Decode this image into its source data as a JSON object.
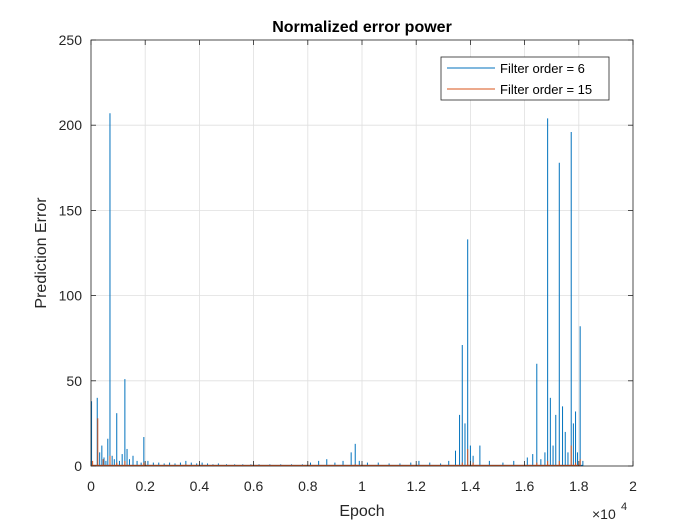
{
  "chart_data": {
    "type": "line",
    "title": "Normalized error power",
    "xlabel": "Epoch",
    "ylabel": "Prediction Error",
    "x_exponent_label": "×10",
    "x_exponent_power": "4",
    "x_ticks": [
      "0",
      "0.2",
      "0.4",
      "0.6",
      "0.8",
      "1",
      "1.2",
      "1.4",
      "1.6",
      "1.8",
      "2"
    ],
    "y_ticks": [
      "0",
      "50",
      "100",
      "150",
      "200",
      "250"
    ],
    "xlim": [
      0,
      20000
    ],
    "ylim": [
      0,
      250
    ],
    "grid": true,
    "legend_position": "top-right",
    "series": [
      {
        "name": "Filter order = 6",
        "color": "#0072BD",
        "spikes": [
          {
            "x": 20,
            "y": 38
          },
          {
            "x": 230,
            "y": 40
          },
          {
            "x": 320,
            "y": 8
          },
          {
            "x": 400,
            "y": 12
          },
          {
            "x": 480,
            "y": 5
          },
          {
            "x": 550,
            "y": 3
          },
          {
            "x": 620,
            "y": 16
          },
          {
            "x": 700,
            "y": 207
          },
          {
            "x": 780,
            "y": 6
          },
          {
            "x": 860,
            "y": 4
          },
          {
            "x": 950,
            "y": 31
          },
          {
            "x": 1050,
            "y": 3
          },
          {
            "x": 1150,
            "y": 7
          },
          {
            "x": 1250,
            "y": 51
          },
          {
            "x": 1330,
            "y": 10
          },
          {
            "x": 1420,
            "y": 4
          },
          {
            "x": 1550,
            "y": 6
          },
          {
            "x": 1700,
            "y": 3
          },
          {
            "x": 1850,
            "y": 2
          },
          {
            "x": 1950,
            "y": 17
          },
          {
            "x": 2100,
            "y": 3
          },
          {
            "x": 2300,
            "y": 2
          },
          {
            "x": 2500,
            "y": 2
          },
          {
            "x": 2700,
            "y": 1.5
          },
          {
            "x": 2900,
            "y": 2
          },
          {
            "x": 3100,
            "y": 1.5
          },
          {
            "x": 3300,
            "y": 2
          },
          {
            "x": 3500,
            "y": 3
          },
          {
            "x": 3700,
            "y": 2
          },
          {
            "x": 3900,
            "y": 1.5
          },
          {
            "x": 4100,
            "y": 2
          },
          {
            "x": 4300,
            "y": 1.5
          },
          {
            "x": 4500,
            "y": 1
          },
          {
            "x": 4700,
            "y": 1.5
          },
          {
            "x": 5000,
            "y": 1
          },
          {
            "x": 5300,
            "y": 1
          },
          {
            "x": 5600,
            "y": 1
          },
          {
            "x": 5900,
            "y": 1
          },
          {
            "x": 6200,
            "y": 1
          },
          {
            "x": 6600,
            "y": 1
          },
          {
            "x": 7000,
            "y": 1
          },
          {
            "x": 7400,
            "y": 1
          },
          {
            "x": 7800,
            "y": 1
          },
          {
            "x": 8100,
            "y": 2
          },
          {
            "x": 8400,
            "y": 3
          },
          {
            "x": 8700,
            "y": 4
          },
          {
            "x": 9000,
            "y": 2
          },
          {
            "x": 9300,
            "y": 3
          },
          {
            "x": 9600,
            "y": 8
          },
          {
            "x": 9750,
            "y": 13
          },
          {
            "x": 9900,
            "y": 3
          },
          {
            "x": 10200,
            "y": 2
          },
          {
            "x": 10600,
            "y": 2
          },
          {
            "x": 11000,
            "y": 1.5
          },
          {
            "x": 11400,
            "y": 1.5
          },
          {
            "x": 11800,
            "y": 2
          },
          {
            "x": 12100,
            "y": 3
          },
          {
            "x": 12500,
            "y": 2
          },
          {
            "x": 12900,
            "y": 1.5
          },
          {
            "x": 13200,
            "y": 3
          },
          {
            "x": 13450,
            "y": 9
          },
          {
            "x": 13600,
            "y": 30
          },
          {
            "x": 13700,
            "y": 71
          },
          {
            "x": 13800,
            "y": 25
          },
          {
            "x": 13900,
            "y": 133
          },
          {
            "x": 14000,
            "y": 12
          },
          {
            "x": 14100,
            "y": 6
          },
          {
            "x": 14350,
            "y": 12
          },
          {
            "x": 14700,
            "y": 3
          },
          {
            "x": 15200,
            "y": 2
          },
          {
            "x": 15600,
            "y": 3
          },
          {
            "x": 16100,
            "y": 5
          },
          {
            "x": 16300,
            "y": 7
          },
          {
            "x": 16450,
            "y": 60
          },
          {
            "x": 16600,
            "y": 4
          },
          {
            "x": 16750,
            "y": 8
          },
          {
            "x": 16850,
            "y": 204
          },
          {
            "x": 16950,
            "y": 40
          },
          {
            "x": 17050,
            "y": 12
          },
          {
            "x": 17150,
            "y": 30
          },
          {
            "x": 17280,
            "y": 178
          },
          {
            "x": 17400,
            "y": 35
          },
          {
            "x": 17500,
            "y": 20
          },
          {
            "x": 17600,
            "y": 8
          },
          {
            "x": 17720,
            "y": 196
          },
          {
            "x": 17800,
            "y": 25
          },
          {
            "x": 17880,
            "y": 32
          },
          {
            "x": 17950,
            "y": 8
          },
          {
            "x": 18050,
            "y": 82
          },
          {
            "x": 18150,
            "y": 3
          }
        ]
      },
      {
        "name": "Filter order = 15",
        "color": "#D95319",
        "spikes": [
          {
            "x": 60,
            "y": 3
          },
          {
            "x": 250,
            "y": 28
          },
          {
            "x": 450,
            "y": 4
          },
          {
            "x": 700,
            "y": 6
          },
          {
            "x": 950,
            "y": 2
          },
          {
            "x": 1250,
            "y": 3
          },
          {
            "x": 1950,
            "y": 2
          },
          {
            "x": 3500,
            "y": 1
          },
          {
            "x": 6000,
            "y": 0.5
          },
          {
            "x": 9750,
            "y": 1
          },
          {
            "x": 13700,
            "y": 2
          },
          {
            "x": 13900,
            "y": 10
          },
          {
            "x": 14100,
            "y": 2
          },
          {
            "x": 16450,
            "y": 2
          },
          {
            "x": 16850,
            "y": 3
          },
          {
            "x": 17280,
            "y": 3
          },
          {
            "x": 17720,
            "y": 12
          },
          {
            "x": 17880,
            "y": 2
          },
          {
            "x": 18050,
            "y": 4
          }
        ]
      }
    ]
  }
}
